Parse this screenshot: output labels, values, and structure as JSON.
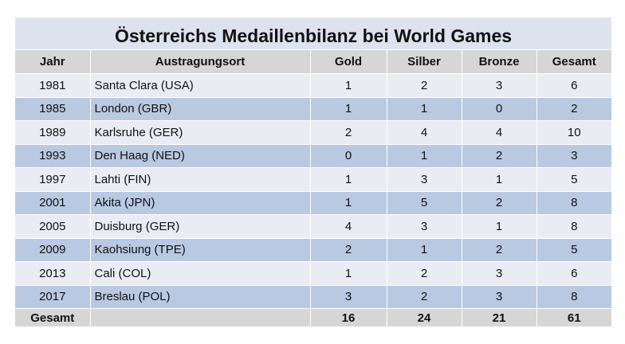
{
  "title": "Österreichs Medaillenbilanz bei World Games",
  "headers": {
    "jahr": "Jahr",
    "ort": "Austragungsort",
    "gold": "Gold",
    "silber": "Silber",
    "bronze": "Bronze",
    "gesamt": "Gesamt"
  },
  "rows": [
    {
      "jahr": "1981",
      "ort": "Santa Clara (USA)",
      "gold": "1",
      "silber": "2",
      "bronze": "3",
      "gesamt": "6"
    },
    {
      "jahr": "1985",
      "ort": "London (GBR)",
      "gold": "1",
      "silber": "1",
      "bronze": "0",
      "gesamt": "2"
    },
    {
      "jahr": "1989",
      "ort": "Karlsruhe (GER)",
      "gold": "2",
      "silber": "4",
      "bronze": "4",
      "gesamt": "10"
    },
    {
      "jahr": "1993",
      "ort": "Den Haag (NED)",
      "gold": "0",
      "silber": "1",
      "bronze": "2",
      "gesamt": "3"
    },
    {
      "jahr": "1997",
      "ort": "Lahti (FIN)",
      "gold": "1",
      "silber": "3",
      "bronze": "1",
      "gesamt": "5"
    },
    {
      "jahr": "2001",
      "ort": "Akita (JPN)",
      "gold": "1",
      "silber": "5",
      "bronze": "2",
      "gesamt": "8"
    },
    {
      "jahr": "2005",
      "ort": "Duisburg (GER)",
      "gold": "4",
      "silber": "3",
      "bronze": "1",
      "gesamt": "8"
    },
    {
      "jahr": "2009",
      "ort": "Kaohsiung (TPE)",
      "gold": "2",
      "silber": "1",
      "bronze": "2",
      "gesamt": "5"
    },
    {
      "jahr": "2013",
      "ort": "Cali (COL)",
      "gold": "1",
      "silber": "2",
      "bronze": "3",
      "gesamt": "6"
    },
    {
      "jahr": "2017",
      "ort": "Breslau (POL)",
      "gold": "3",
      "silber": "2",
      "bronze": "3",
      "gesamt": "8"
    }
  ],
  "total": {
    "label": "Gesamt",
    "ort": "",
    "gold": "16",
    "silber": "24",
    "bronze": "21",
    "gesamt": "61"
  },
  "colors": {
    "title_bg": "#dde3ee",
    "header_bg": "#d6d6d6",
    "row_light": "#e9ecf3",
    "row_dark": "#b9c9e2"
  }
}
